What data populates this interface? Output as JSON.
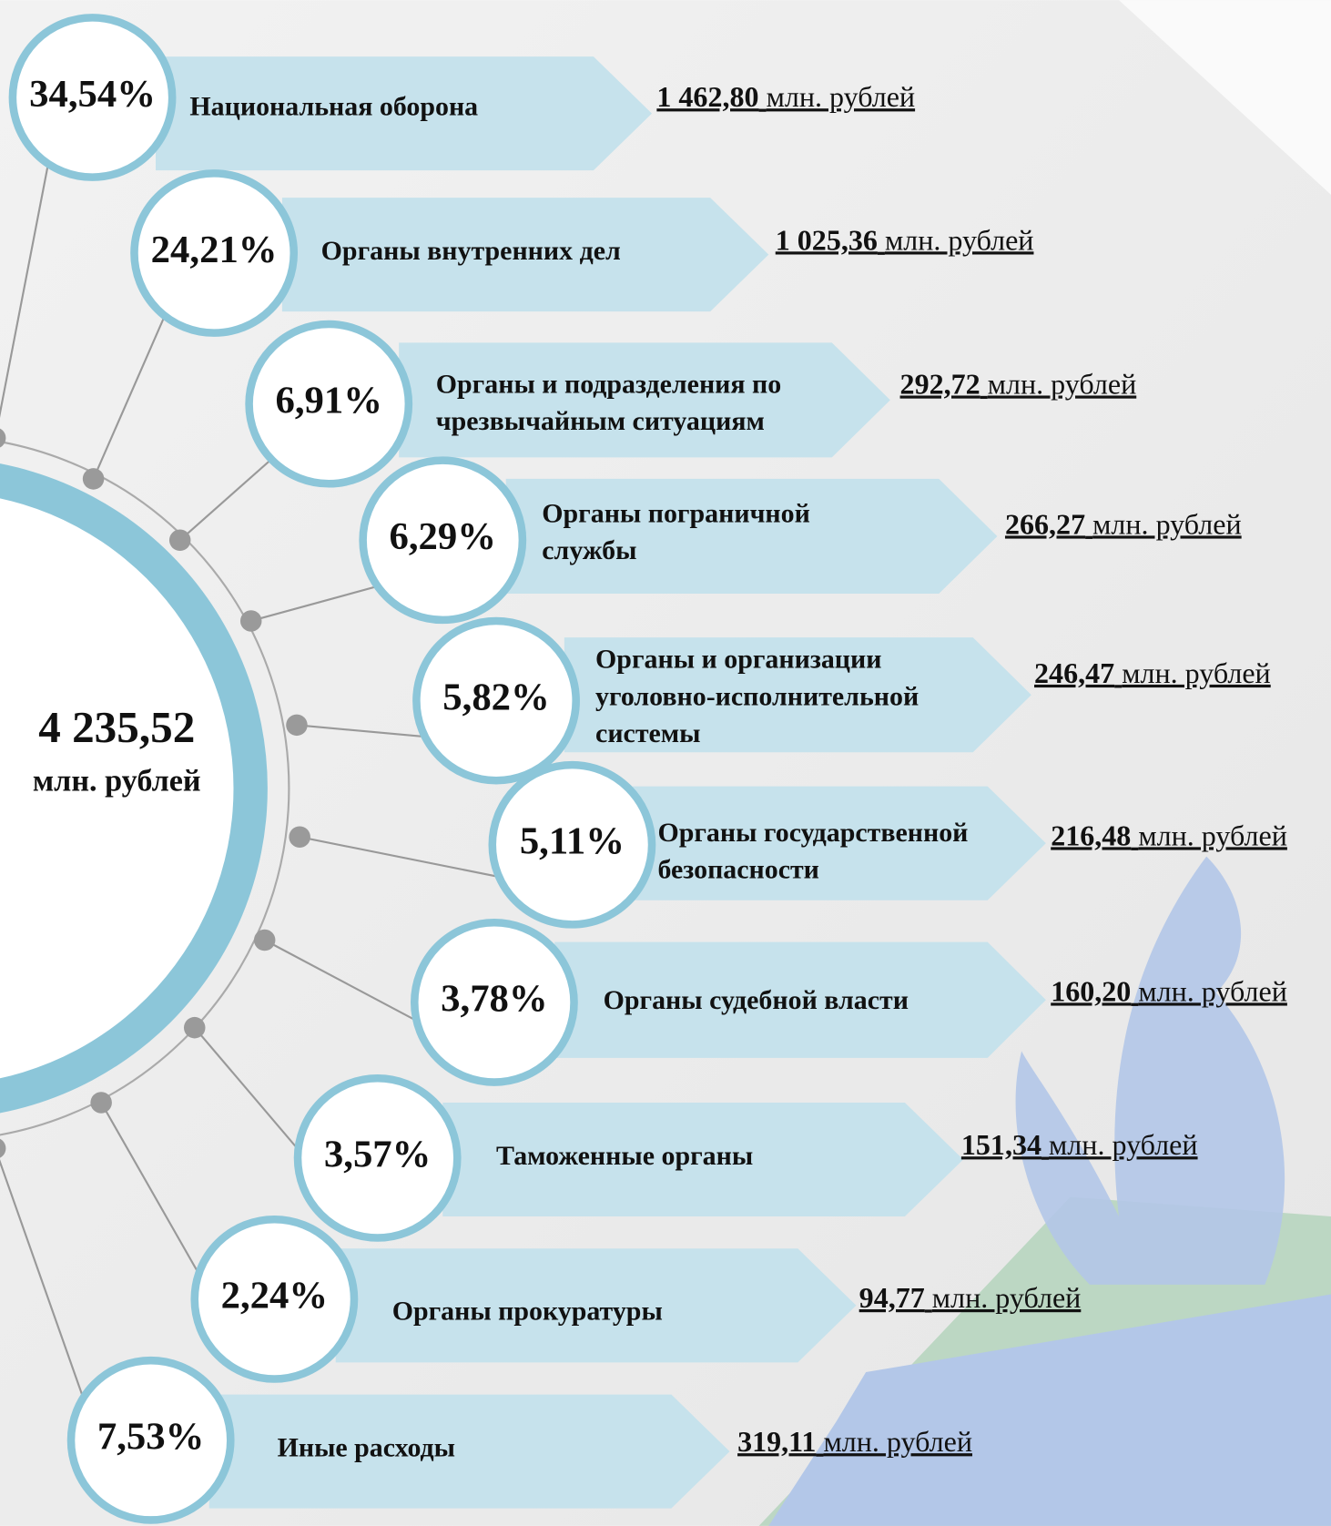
{
  "total": {
    "value": "4 235,52",
    "unit": "млн. рублей"
  },
  "items": [
    {
      "percent": "34,54%",
      "label": [
        "Национальная оборона"
      ],
      "amount": "1 462,80",
      "unit": "млн. рублей"
    },
    {
      "percent": "24,21%",
      "label": [
        "Органы внутренних дел"
      ],
      "amount": "1 025,36",
      "unit": "млн. рублей"
    },
    {
      "percent": "6,91%",
      "label": [
        "Органы и подразделения по",
        "чрезвычайным ситуациям"
      ],
      "amount": "292,72",
      "unit": "млн. рублей"
    },
    {
      "percent": "6,29%",
      "label": [
        "Органы пограничной",
        "службы"
      ],
      "amount": "266,27",
      "unit": "млн. рублей"
    },
    {
      "percent": "5,82%",
      "label": [
        "Органы и организации",
        "уголовно-исполнительной",
        "системы"
      ],
      "amount": "246,47",
      "unit": "млн. рублей"
    },
    {
      "percent": "5,11%",
      "label": [
        "Органы государственной",
        "безопасности"
      ],
      "amount": "216,48",
      "unit": "млн. рублей"
    },
    {
      "percent": "3,78%",
      "label": [
        "Органы судебной власти"
      ],
      "amount": "160,20",
      "unit": "млн. рублей"
    },
    {
      "percent": "3,57%",
      "label": [
        "Таможенные органы"
      ],
      "amount": "151,34",
      "unit": "млн. рублей"
    },
    {
      "percent": "2,24%",
      "label": [
        "Органы прокуратуры"
      ],
      "amount": "94,77",
      "unit": "млн. рублей"
    },
    {
      "percent": "7,53%",
      "label": [
        "Иные расходы"
      ],
      "amount": "319,11",
      "unit": "млн. рублей"
    }
  ]
}
